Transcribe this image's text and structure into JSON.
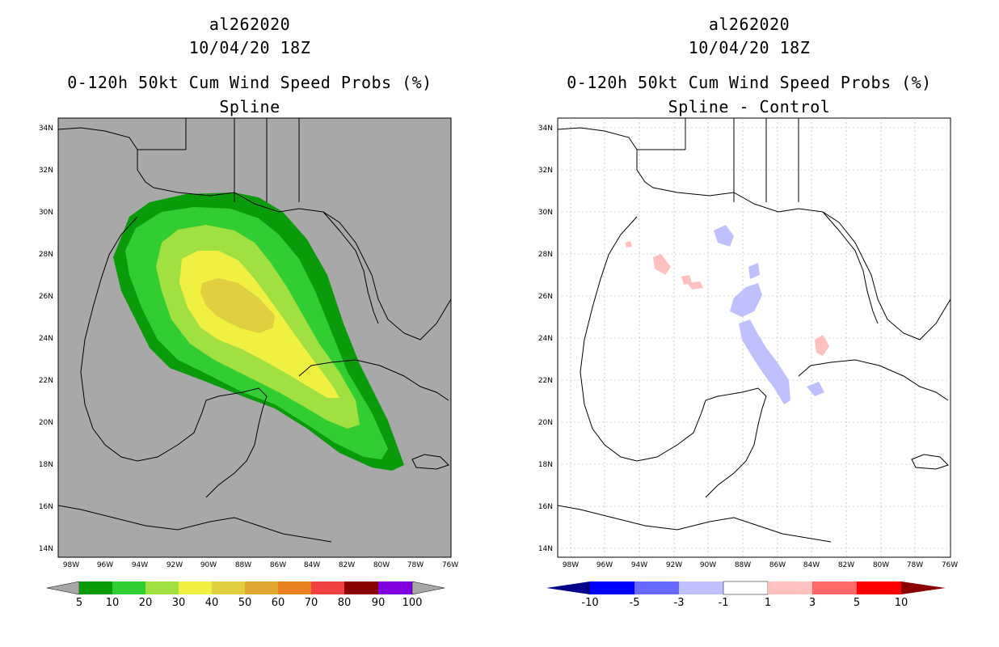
{
  "panels": [
    {
      "title_lines": [
        "al262020",
        "10/04/20 18Z",
        "0-120h 50kt Cum Wind Speed Probs (%)",
        "Spline"
      ],
      "map_background": "#a8a8a8",
      "colorbar": {
        "labels": [
          "5",
          "10",
          "20",
          "30",
          "40",
          "50",
          "60",
          "70",
          "80",
          "90",
          "100"
        ],
        "colors": [
          "#0a9b0a",
          "#32cd32",
          "#a0e040",
          "#f0f040",
          "#e0d040",
          "#e0a830",
          "#e88020",
          "#f04040",
          "#8b0000",
          "#8000e0"
        ]
      }
    },
    {
      "title_lines": [
        "al262020",
        "10/04/20 18Z",
        "0-120h 50kt Cum Wind Speed Probs (%)",
        "Spline - Control"
      ],
      "map_background": "#ffffff",
      "colorbar": {
        "labels": [
          "-10",
          "-5",
          "-3",
          "-1",
          "1",
          "3",
          "5",
          "10"
        ],
        "colors": [
          "#0000ff",
          "#6868ff",
          "#c0c0ff",
          "#ffffff",
          "#ffc0c0",
          "#ff6868",
          "#ff0000"
        ],
        "end_left": "#00008b",
        "end_right": "#8b0000"
      }
    }
  ],
  "axes": {
    "lat_labels": [
      "34N",
      "32N",
      "30N",
      "28N",
      "26N",
      "24N",
      "22N",
      "20N",
      "18N",
      "16N",
      "14N"
    ],
    "lon_labels": [
      "98W",
      "96W",
      "94W",
      "92W",
      "90W",
      "88W",
      "86W",
      "84W",
      "82W",
      "80W",
      "78W",
      "76W"
    ]
  }
}
